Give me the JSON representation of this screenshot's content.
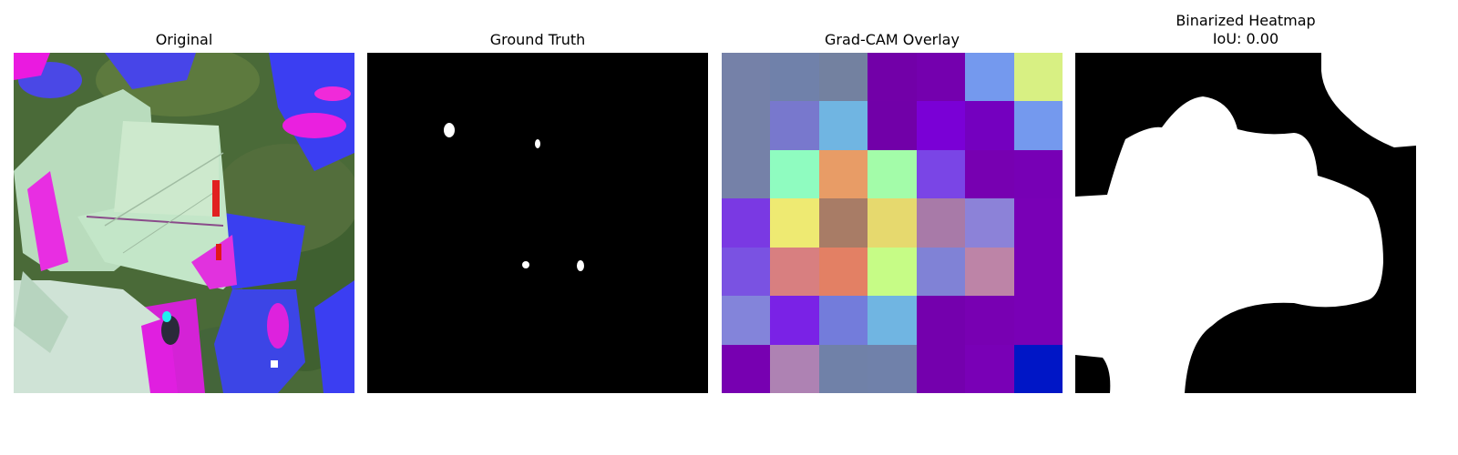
{
  "panels": [
    {
      "title": "Original"
    },
    {
      "title": "Ground Truth"
    },
    {
      "title": "Grad-CAM Overlay"
    },
    {
      "title": "Binarized Heatmap",
      "subtitle": "IoU: 0.00"
    }
  ],
  "gradcam_grid": [
    [
      "#7581a8",
      "#7081aa",
      "#7381a0",
      "#7200a8",
      "#7400ae",
      "#7499ee",
      "#d8f083"
    ],
    [
      "#7581a8",
      "#7878cd",
      "#70b5e2",
      "#7100a8",
      "#7a00d6",
      "#7400bf",
      "#7499ee"
    ],
    [
      "#7581a8",
      "#8ffcc0",
      "#e89c66",
      "#a3fca9",
      "#7a45e6",
      "#7700b1",
      "#7700b5"
    ],
    [
      "#7a39e3",
      "#eeea72",
      "#a87c66",
      "#e6d96e",
      "#a87aa8",
      "#8c82d8",
      "#7900b6"
    ],
    [
      "#7a52e2",
      "#d87f80",
      "#e38064",
      "#c6fc86",
      "#8082d6",
      "#bd84a7",
      "#7900b6"
    ],
    [
      "#8384da",
      "#7a22e6",
      "#737cdb",
      "#70b5e2",
      "#7400ad",
      "#7800b2",
      "#7900b6"
    ],
    [
      "#7700b1",
      "#ae82b3",
      "#7081a8",
      "#7081aa",
      "#7400ad",
      "#7900b6",
      "#0016c6"
    ]
  ],
  "colors": {
    "background": "#ffffff",
    "mask_foreground": "#ffffff",
    "mask_background": "#000000"
  }
}
